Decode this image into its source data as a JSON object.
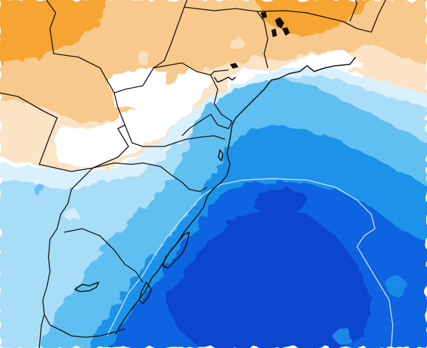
{
  "map": {
    "kind": "weather-anomaly-field",
    "region": "southern-brazil-coast",
    "colors": {
      "warm_strong": "#f6a433",
      "warm_mid": "#f8c98c",
      "warm_light": "#fbe3c6",
      "neutral": "#ffffff",
      "cool_lightest": "#d9f1fc",
      "cool_light": "#a8ddf7",
      "cool_mid": "#5fbff0",
      "cool_strong": "#1e93e9",
      "cool_deep": "#0a63e0",
      "cool_deepest": "#0a44cf",
      "border": "#111111",
      "contour": "#d8e8ff"
    },
    "labels": []
  }
}
